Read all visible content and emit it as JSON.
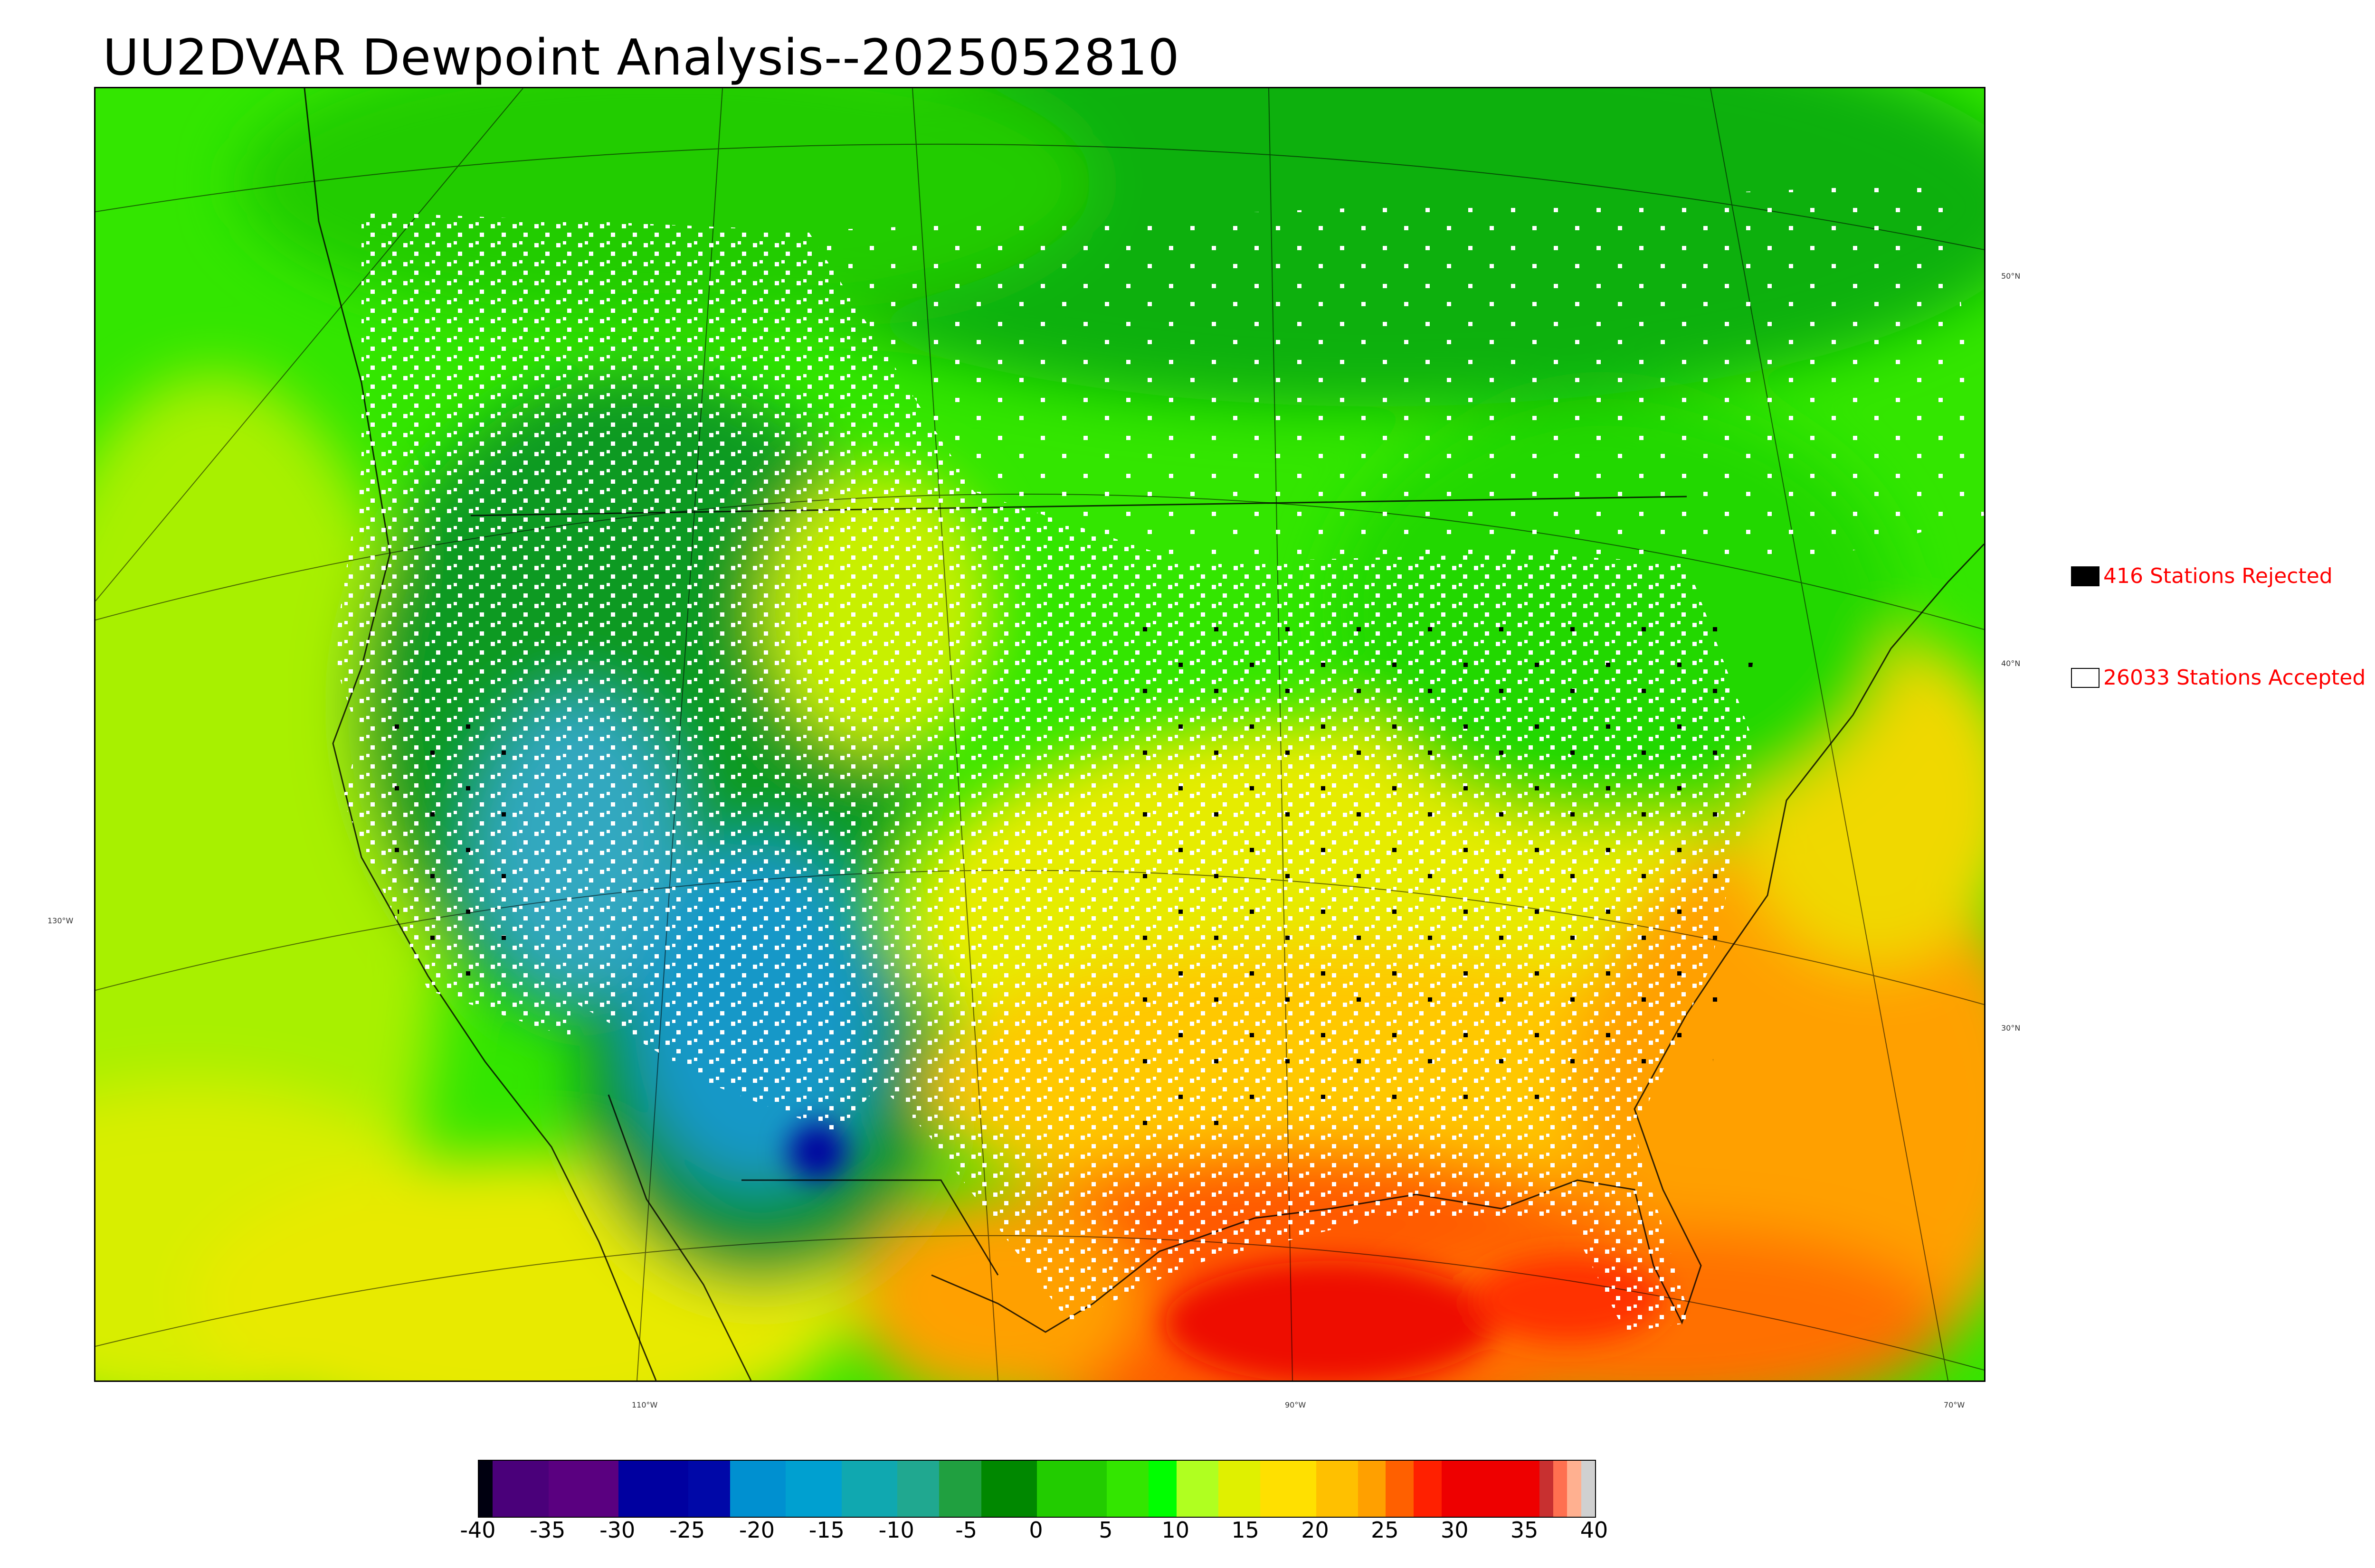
{
  "title": "UU2DVAR Dewpoint Analysis--2025052810",
  "map": {
    "lat_labels": [
      "50°N",
      "40°N",
      "30°N"
    ],
    "lon_labels": [
      "130°W",
      "110°W",
      "90°W",
      "70°W"
    ]
  },
  "legend": {
    "rejected": {
      "label": "416 Stations Rejected",
      "count": 416,
      "swatch_color": "#000000"
    },
    "accepted": {
      "label": "26033 Stations Accepted",
      "count": 26033,
      "swatch_color": "#ffffff"
    }
  },
  "colorbar": {
    "ticks": [
      "-40",
      "-35",
      "-30",
      "-25",
      "-20",
      "-15",
      "-10",
      "-5",
      "0",
      "5",
      "10",
      "15",
      "20",
      "25",
      "30",
      "35",
      "40"
    ],
    "range": [
      -40,
      40
    ],
    "segments": [
      {
        "from": -40,
        "to": -39,
        "color": "#000010"
      },
      {
        "from": -39,
        "to": -35,
        "color": "#4a007a"
      },
      {
        "from": -35,
        "to": -30,
        "color": "#5a0080"
      },
      {
        "from": -30,
        "to": -25,
        "color": "#0000a0"
      },
      {
        "from": -25,
        "to": -22,
        "color": "#0008a8"
      },
      {
        "from": -22,
        "to": -18,
        "color": "#0090d0"
      },
      {
        "from": -18,
        "to": -14,
        "color": "#00a0d0"
      },
      {
        "from": -14,
        "to": -10,
        "color": "#10a8b0"
      },
      {
        "from": -10,
        "to": -7,
        "color": "#20a890"
      },
      {
        "from": -7,
        "to": -4,
        "color": "#20a040"
      },
      {
        "from": -4,
        "to": 0,
        "color": "#008800"
      },
      {
        "from": 0,
        "to": 5,
        "color": "#22cc00"
      },
      {
        "from": 5,
        "to": 8,
        "color": "#33e600"
      },
      {
        "from": 8,
        "to": 10,
        "color": "#00ff00"
      },
      {
        "from": 10,
        "to": 13,
        "color": "#b0ff20"
      },
      {
        "from": 13,
        "to": 16,
        "color": "#e0f000"
      },
      {
        "from": 16,
        "to": 20,
        "color": "#ffe000"
      },
      {
        "from": 20,
        "to": 23,
        "color": "#ffc000"
      },
      {
        "from": 23,
        "to": 25,
        "color": "#ffa000"
      },
      {
        "from": 25,
        "to": 27,
        "color": "#ff6000"
      },
      {
        "from": 27,
        "to": 29,
        "color": "#ff2000"
      },
      {
        "from": 29,
        "to": 36,
        "color": "#ee0000"
      },
      {
        "from": 36,
        "to": 37,
        "color": "#c83030"
      },
      {
        "from": 37,
        "to": 38,
        "color": "#ff7050"
      },
      {
        "from": 38,
        "to": 39,
        "color": "#ffb090"
      },
      {
        "from": 39,
        "to": 40,
        "color": "#d0d0d0"
      }
    ]
  }
}
